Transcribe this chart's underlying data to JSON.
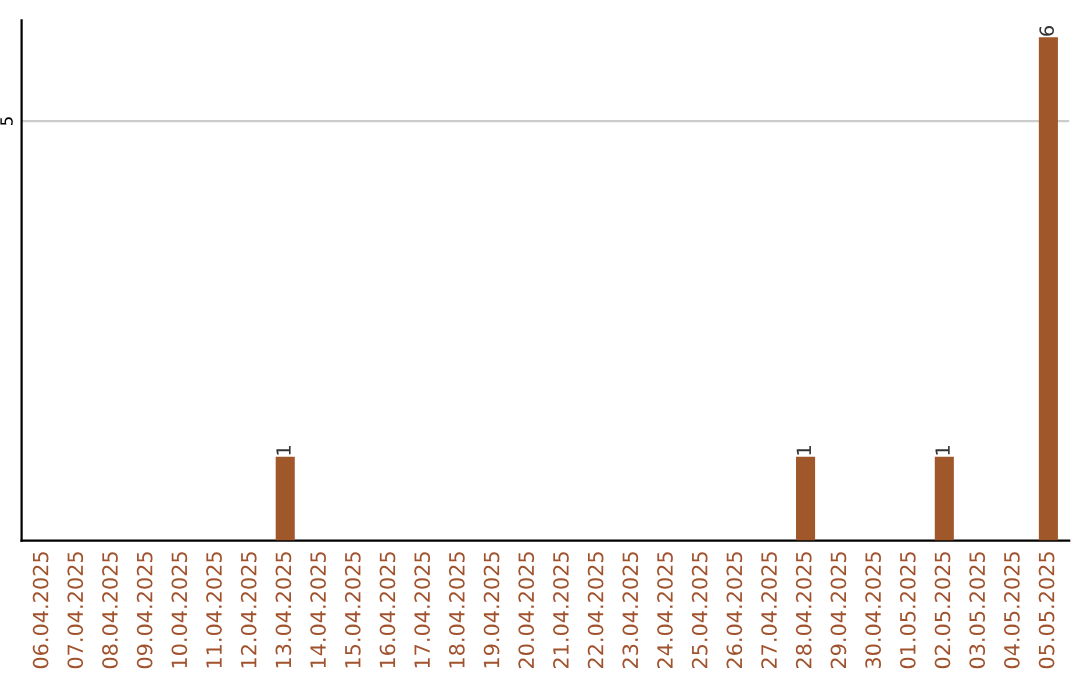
{
  "chart_data": {
    "type": "bar",
    "categories": [
      "06.04.2025",
      "07.04.2025",
      "08.04.2025",
      "09.04.2025",
      "10.04.2025",
      "11.04.2025",
      "12.04.2025",
      "13.04.2025",
      "14.04.2025",
      "15.04.2025",
      "16.04.2025",
      "17.04.2025",
      "18.04.2025",
      "19.04.2025",
      "20.04.2025",
      "21.04.2025",
      "22.04.2025",
      "23.04.2025",
      "24.04.2025",
      "25.04.2025",
      "26.04.2025",
      "27.04.2025",
      "28.04.2025",
      "29.04.2025",
      "30.04.2025",
      "01.05.2025",
      "02.05.2025",
      "03.05.2025",
      "04.05.2025",
      "05.05.2025"
    ],
    "values": [
      0,
      0,
      0,
      0,
      0,
      0,
      0,
      1,
      0,
      0,
      0,
      0,
      0,
      0,
      0,
      0,
      0,
      0,
      0,
      0,
      0,
      0,
      1,
      0,
      0,
      0,
      1,
      0,
      0,
      6
    ],
    "value_labels": [
      null,
      null,
      null,
      null,
      null,
      null,
      null,
      "1",
      null,
      null,
      null,
      null,
      null,
      null,
      null,
      null,
      null,
      null,
      null,
      null,
      null,
      null,
      "1",
      null,
      null,
      null,
      "1",
      null,
      null,
      "6"
    ],
    "color": "#a0572a",
    "ylim": [
      0,
      6.2
    ],
    "yticks": [
      5
    ],
    "grid": "y"
  }
}
